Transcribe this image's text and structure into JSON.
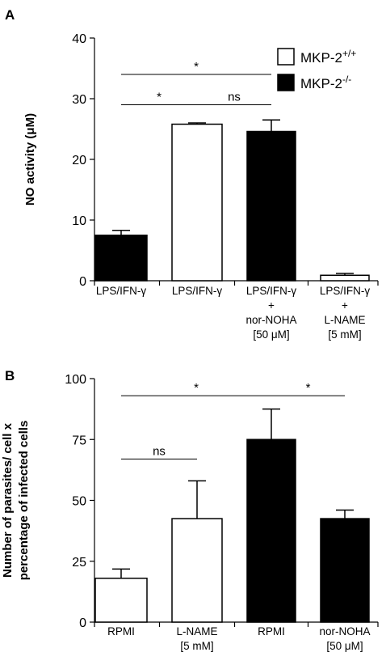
{
  "chart_data": [
    {
      "panel": "A",
      "type": "bar",
      "ylabel": "NO activity (μM)",
      "ylim": [
        0,
        40
      ],
      "yticks": [
        0,
        10,
        20,
        30,
        40
      ],
      "legend_position": "top-right",
      "legend": [
        {
          "label": "MKP-2",
          "sup": "+/+",
          "fill": "#ffffff"
        },
        {
          "label": "MKP-2",
          "sup": "-/-",
          "fill": "#000000"
        }
      ],
      "bars": [
        {
          "label": [
            "LPS/IFN-γ"
          ],
          "value": 7.5,
          "error": 0.8,
          "fill": "#000000"
        },
        {
          "label": [
            "LPS/IFN-γ"
          ],
          "value": 25.8,
          "error": 0.2,
          "fill": "#ffffff"
        },
        {
          "label": [
            "LPS/IFN-γ",
            "+",
            "nor-NOHA",
            "[50  μM]"
          ],
          "value": 24.6,
          "error": 1.9,
          "fill": "#000000"
        },
        {
          "label": [
            "LPS/IFN-γ",
            "+",
            "L-NAME",
            "[5 mM]"
          ],
          "value": 0.9,
          "error": 0.3,
          "fill": "#ffffff"
        }
      ],
      "annotations": [
        {
          "from": 0,
          "to": 2,
          "text": "*",
          "y": 34
        },
        {
          "from": 0,
          "to": 1,
          "text": "*",
          "y": 29
        },
        {
          "from": 1,
          "to": 2,
          "text": "ns",
          "y": 29
        }
      ]
    },
    {
      "panel": "B",
      "type": "bar",
      "ylabel": [
        "Number of parasites/ cell x",
        "percentage of infected cells"
      ],
      "ylim": [
        0,
        100
      ],
      "yticks": [
        0,
        25,
        50,
        75,
        100
      ],
      "bars": [
        {
          "label": [
            "RPMI"
          ],
          "value": 18,
          "error": 3.8,
          "fill": "#ffffff"
        },
        {
          "label": [
            "L-NAME",
            "[5 mM]"
          ],
          "value": 42.5,
          "error": 15.5,
          "fill": "#ffffff"
        },
        {
          "label": [
            "RPMI"
          ],
          "value": 75,
          "error": 12.5,
          "fill": "#000000"
        },
        {
          "label": [
            "nor-NOHA",
            "[50  μM]"
          ],
          "value": 42.5,
          "error": 3.5,
          "fill": "#000000"
        }
      ],
      "annotations": [
        {
          "from": 0,
          "to": 2,
          "text": "*",
          "y": 93
        },
        {
          "from": 2,
          "to": 3,
          "text": "*",
          "y": 93
        },
        {
          "from": 0,
          "to": 1,
          "text": "ns",
          "y": 67
        }
      ]
    }
  ]
}
